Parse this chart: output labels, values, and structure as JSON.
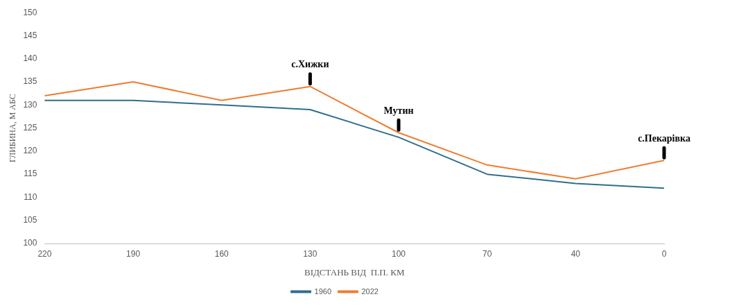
{
  "chart_data": {
    "type": "line",
    "xlabel": "ВІДСТАНЬ ВІД  П.П. КМ",
    "ylabel": "ГЛИБИНА, М АБС",
    "categories": [
      "220",
      "190",
      "160",
      "130",
      "100",
      "70",
      "40",
      "0"
    ],
    "series": [
      {
        "name": "1960",
        "color": "#2e6e8e",
        "values": [
          131,
          131,
          130,
          129,
          123,
          115,
          113,
          112
        ]
      },
      {
        "name": "2022",
        "color": "#ed7d31",
        "values": [
          132,
          135,
          131,
          134,
          124,
          117,
          114,
          118
        ]
      }
    ],
    "ylim": [
      100,
      150
    ],
    "yticks": [
      100,
      105,
      110,
      115,
      120,
      125,
      130,
      135,
      140,
      145,
      150
    ],
    "legend": "bottom",
    "marker": "none",
    "line_style": "solid",
    "grid": false,
    "annotations": [
      {
        "text": "с.Хижки",
        "x": "130",
        "y": 134
      },
      {
        "text": "Мутин",
        "x": "100",
        "y": 124
      },
      {
        "text": "с.Пекарівка",
        "x": "0",
        "y": 118
      }
    ]
  }
}
